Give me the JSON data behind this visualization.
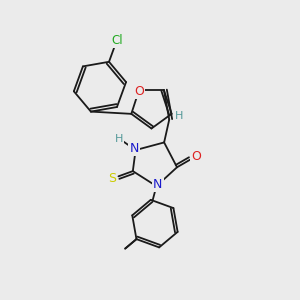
{
  "background_color": "#ebebeb",
  "bond_color": "#1a1a1a",
  "figsize": [
    3.0,
    3.0
  ],
  "dpi": 100,
  "atoms": {
    "Cl": {
      "color": "#22aa22",
      "fontsize": 8.5
    },
    "O": {
      "color": "#dd2222",
      "fontsize": 9
    },
    "N": {
      "color": "#1a1acc",
      "fontsize": 9
    },
    "S": {
      "color": "#cccc00",
      "fontsize": 9
    },
    "H": {
      "color": "#559999",
      "fontsize": 8
    },
    "C": {
      "color": "#1a1a1a",
      "fontsize": 8
    }
  }
}
